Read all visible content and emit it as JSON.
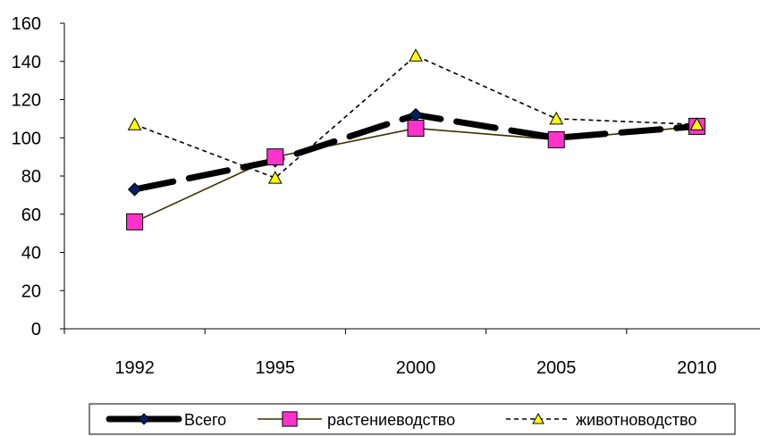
{
  "chart_data": {
    "type": "line",
    "categories": [
      "1992",
      "1995",
      "2000",
      "2005",
      "2010"
    ],
    "ylim": [
      0,
      160
    ],
    "yticks": [
      "0",
      "20",
      "40",
      "60",
      "80",
      "100",
      "120",
      "140",
      "160"
    ],
    "grid": false,
    "legend_position": "bottom",
    "series": [
      {
        "name": "Всего",
        "values": [
          73,
          88,
          112,
          100,
          106
        ],
        "color": "#000000",
        "marker": "diamond",
        "marker_color": "#002060",
        "line": "thick-dash"
      },
      {
        "name": "растениеводство",
        "values": [
          56,
          90,
          105,
          99,
          106
        ],
        "color": "#3a3000",
        "marker": "square",
        "marker_color": "#ff33cc",
        "line": "solid"
      },
      {
        "name": "животноводство",
        "values": [
          107,
          79,
          143,
          110,
          107
        ],
        "color": "#000000",
        "marker": "triangle",
        "marker_color": "#ffff00",
        "line": "dashed"
      }
    ]
  }
}
